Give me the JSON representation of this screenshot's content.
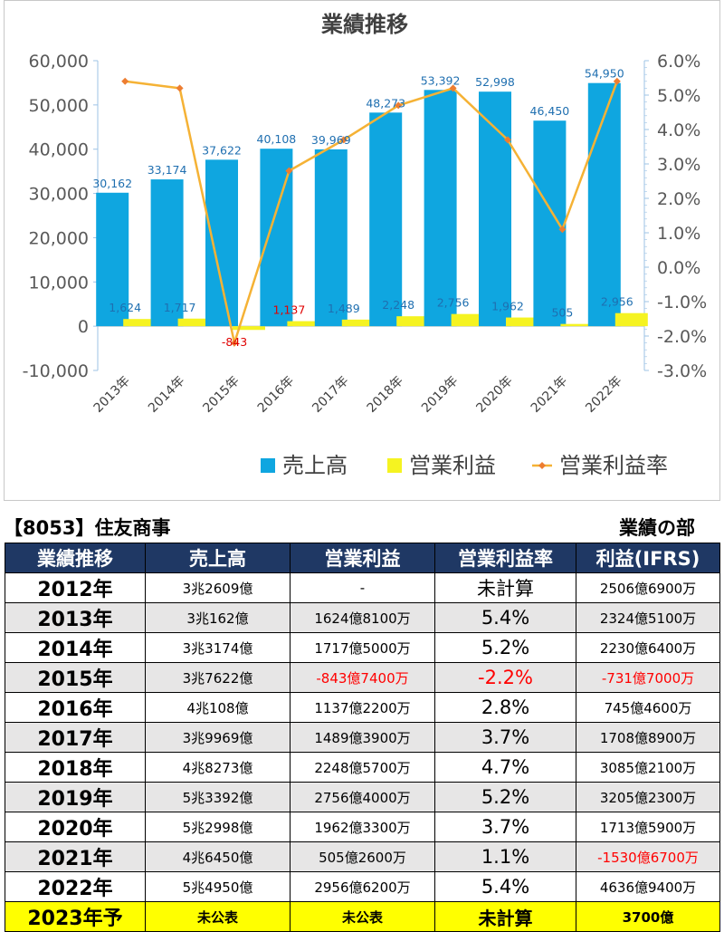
{
  "chart_data": {
    "type": "bar",
    "title": "業績推移",
    "categories": [
      "2013年",
      "2014年",
      "2015年",
      "2016年",
      "2017年",
      "2018年",
      "2019年",
      "2020年",
      "2021年",
      "2022年"
    ],
    "series": [
      {
        "name": "売上高",
        "type": "bar",
        "axis": "left",
        "color": "#0fa6e0",
        "values": [
          30162,
          33174,
          37622,
          40108,
          39969,
          48273,
          53392,
          52998,
          46450,
          54950
        ],
        "labels": [
          "30,162",
          "33,174",
          "37,622",
          "40,108",
          "39,969",
          "48,273",
          "53,392",
          "52,998",
          "46,450",
          "54,950"
        ]
      },
      {
        "name": "営業利益",
        "type": "bar",
        "axis": "left",
        "color": "#f5f321",
        "values": [
          1624,
          1717,
          -843,
          1137,
          1489,
          2248,
          2756,
          1962,
          505,
          2956
        ],
        "labels": [
          "1,624",
          "1,717",
          "-843",
          "1,137",
          "1,489",
          "2,248",
          "2,756",
          "1,962",
          "505",
          "2,956"
        ]
      },
      {
        "name": "営業利益率",
        "type": "line",
        "axis": "right",
        "color": "#f5b235",
        "values": [
          5.4,
          5.2,
          -2.2,
          2.8,
          3.7,
          4.7,
          5.2,
          3.7,
          1.1,
          5.4
        ]
      }
    ],
    "y_left": {
      "min": -10000,
      "max": 60000,
      "ticks": [
        "60,000",
        "50,000",
        "40,000",
        "30,000",
        "20,000",
        "10,000",
        "0",
        "-10,000"
      ]
    },
    "y_right": {
      "min": -3.0,
      "max": 6.0,
      "ticks": [
        "6.0%",
        "5.0%",
        "4.0%",
        "3.0%",
        "2.0%",
        "1.0%",
        "0.0%",
        "-1.0%",
        "-2.0%",
        "-3.0%"
      ]
    },
    "legend_position": "bottom",
    "grid": false
  },
  "table": {
    "company": "【8053】住友商事",
    "section": "業績の部",
    "headers": [
      "業績推移",
      "売上高",
      "営業利益",
      "営業利益率",
      "利益(IFRS)"
    ],
    "rows": [
      {
        "year": "2012年",
        "revenue": "3兆2609億",
        "op": "-",
        "rate": "未計算",
        "profit": "2506億6900万"
      },
      {
        "year": "2013年",
        "revenue": "3兆162億",
        "op": "1624億8100万",
        "rate": "5.4%",
        "profit": "2324億5100万"
      },
      {
        "year": "2014年",
        "revenue": "3兆3174億",
        "op": "1717億5000万",
        "rate": "5.2%",
        "profit": "2230億6400万"
      },
      {
        "year": "2015年",
        "revenue": "3兆7622億",
        "op": "-843億7400万",
        "rate": "-2.2%",
        "profit": "-731億7000万",
        "neg": true
      },
      {
        "year": "2016年",
        "revenue": "4兆108億",
        "op": "1137億2200万",
        "rate": "2.8%",
        "profit": "745億4600万"
      },
      {
        "year": "2017年",
        "revenue": "3兆9969億",
        "op": "1489億3900万",
        "rate": "3.7%",
        "profit": "1708億8900万"
      },
      {
        "year": "2018年",
        "revenue": "4兆8273億",
        "op": "2248億5700万",
        "rate": "4.7%",
        "profit": "3085億2100万"
      },
      {
        "year": "2019年",
        "revenue": "5兆3392億",
        "op": "2756億4000万",
        "rate": "5.2%",
        "profit": "3205億2300万"
      },
      {
        "year": "2020年",
        "revenue": "5兆2998億",
        "op": "1962億3300万",
        "rate": "3.7%",
        "profit": "1713億5900万"
      },
      {
        "year": "2021年",
        "revenue": "4兆6450億",
        "op": "505億2600万",
        "rate": "1.1%",
        "profit": "-1530億6700万",
        "neg_profit": true
      },
      {
        "year": "2022年",
        "revenue": "5兆4950億",
        "op": "2956億6200万",
        "rate": "5.4%",
        "profit": "4636億9400万"
      },
      {
        "year": "2023年予",
        "revenue": "未公表",
        "op": "未公表",
        "rate": "未計算",
        "profit": "3700億",
        "forecast": true
      }
    ]
  }
}
